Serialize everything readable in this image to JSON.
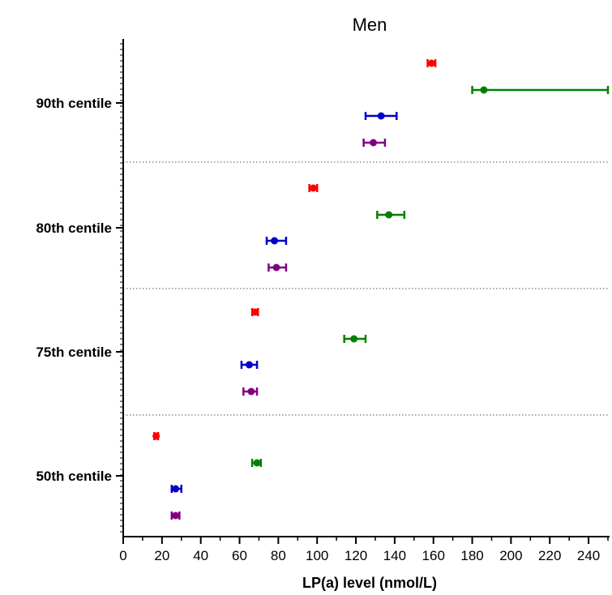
{
  "chart_data": {
    "type": "scatter",
    "title": "Men",
    "xlabel": "LP(a) level (nmol/L)",
    "ylabel": "",
    "xlim": [
      0,
      250
    ],
    "xticks": [
      0,
      20,
      40,
      60,
      80,
      100,
      120,
      140,
      160,
      180,
      200,
      220,
      240
    ],
    "categories": [
      "90th centile",
      "80th centile",
      "75th centile",
      "50th centile"
    ],
    "grid": "dotted separators between centile groups",
    "legend": "none",
    "series": [
      {
        "color": "#ff0000",
        "points": [
          {
            "category": "90th centile",
            "x": 159,
            "low": 157,
            "high": 161
          },
          {
            "category": "80th centile",
            "x": 98,
            "low": 96,
            "high": 100
          },
          {
            "category": "75th centile",
            "x": 68,
            "low": 66.5,
            "high": 69.5
          },
          {
            "category": "50th centile",
            "x": 17,
            "low": 16,
            "high": 18
          }
        ]
      },
      {
        "color": "#008000",
        "points": [
          {
            "category": "90th centile",
            "x": 186,
            "low": 180,
            "high": 250
          },
          {
            "category": "80th centile",
            "x": 137,
            "low": 131,
            "high": 145
          },
          {
            "category": "75th centile",
            "x": 119,
            "low": 114,
            "high": 125
          },
          {
            "category": "50th centile",
            "x": 69,
            "low": 66.5,
            "high": 71
          }
        ]
      },
      {
        "color": "#0000cc",
        "points": [
          {
            "category": "90th centile",
            "x": 133,
            "low": 125,
            "high": 141
          },
          {
            "category": "80th centile",
            "x": 78,
            "low": 74,
            "high": 84
          },
          {
            "category": "75th centile",
            "x": 65,
            "low": 61,
            "high": 69
          },
          {
            "category": "50th centile",
            "x": 27,
            "low": 25,
            "high": 30
          }
        ]
      },
      {
        "color": "#800080",
        "points": [
          {
            "category": "90th centile",
            "x": 129,
            "low": 124,
            "high": 135
          },
          {
            "category": "80th centile",
            "x": 79,
            "low": 75,
            "high": 84
          },
          {
            "category": "75th centile",
            "x": 66,
            "low": 62,
            "high": 69
          },
          {
            "category": "50th centile",
            "x": 27,
            "low": 25,
            "high": 29
          }
        ]
      }
    ]
  }
}
